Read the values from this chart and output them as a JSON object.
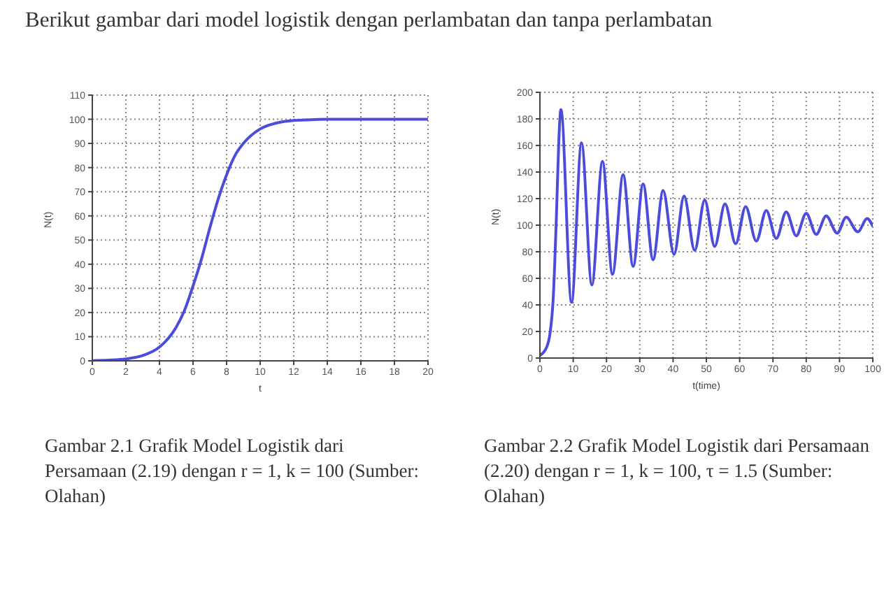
{
  "chart_data": [
    {
      "type": "line",
      "xlabel": "t",
      "ylabel": "N(t)",
      "xlim": [
        0,
        20
      ],
      "ylim": [
        0,
        110
      ],
      "xticks": [
        0,
        2,
        4,
        6,
        8,
        10,
        12,
        14,
        16,
        18,
        20
      ],
      "yticks": [
        0,
        10,
        20,
        30,
        40,
        50,
        60,
        70,
        80,
        90,
        100,
        110
      ],
      "grid": true,
      "marker": "none",
      "line_style": "solid",
      "annotations": [
        "Berikut gambar dari model logistik dengan perlambatan dan tanpa perlambatan",
        "Gambar 2.1 Grafik Model Logistik dari Persamaan (2.19) dengan r = 1, k = 100 (Sumber: Olahan)"
      ],
      "series": [
        {
          "color": "#4b4bdc",
          "x": [
            0,
            1,
            2,
            3,
            4,
            5,
            5.5,
            6,
            6.5,
            7,
            7.5,
            8,
            8.5,
            9,
            10,
            11,
            12,
            13,
            14,
            16,
            18,
            20
          ],
          "values": [
            0.1,
            0.3,
            0.8,
            2.2,
            5.7,
            14,
            21,
            31,
            42,
            55,
            67,
            77,
            85,
            90,
            96,
            98.5,
            99.5,
            99.8,
            100,
            100,
            100,
            100
          ]
        }
      ]
    },
    {
      "type": "line",
      "xlabel": "t(time)",
      "ylabel": "N(t)",
      "xlim": [
        0,
        100
      ],
      "ylim": [
        0,
        200
      ],
      "xticks": [
        0,
        10,
        20,
        30,
        40,
        50,
        60,
        70,
        80,
        90,
        100
      ],
      "yticks": [
        0,
        20,
        40,
        60,
        80,
        100,
        120,
        140,
        160,
        180,
        200
      ],
      "grid": true,
      "marker": "none",
      "line_style": "solid",
      "annotations": [
        "Gambar 2.2 Grafik Model Logistik dari Persamaan (2.20) dengan r = 1, k = 100, τ = 1.5 (Sumber: Olahan)"
      ],
      "series": [
        {
          "color": "#4b4bdc",
          "x": [
            0,
            2,
            3,
            4,
            5,
            5.7,
            6.3,
            9.5,
            12.5,
            15.6,
            18.8,
            21.8,
            25,
            28,
            31,
            34,
            37,
            40.3,
            43.3,
            46.5,
            49.5,
            52.5,
            55.6,
            58.8,
            61.8,
            65,
            68,
            71,
            74,
            77,
            80,
            83,
            86,
            89.3,
            92,
            95.5,
            98.3,
            100
          ],
          "values": [
            2,
            8,
            18,
            45,
            110,
            165,
            187,
            42,
            162,
            55,
            148,
            63,
            138,
            69,
            131,
            74,
            126,
            78,
            122,
            81,
            119,
            84,
            116,
            86,
            114,
            88,
            111,
            90,
            110,
            92,
            109,
            93,
            107,
            94,
            106,
            95,
            105,
            99
          ]
        }
      ]
    }
  ]
}
